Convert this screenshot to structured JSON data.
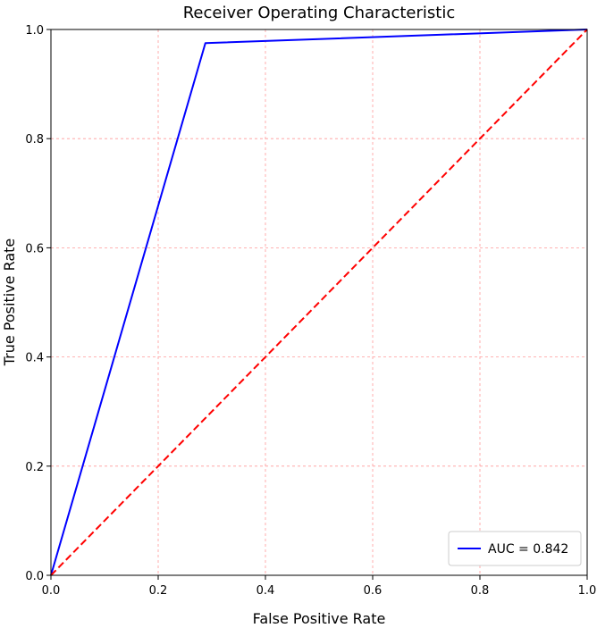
{
  "chart_data": {
    "type": "line",
    "title": "Receiver Operating Characteristic",
    "xlabel": "False Positive Rate",
    "ylabel": "True Positive Rate",
    "xlim": [
      0,
      1
    ],
    "ylim": [
      0,
      1
    ],
    "xticks": [
      0.0,
      0.2,
      0.4,
      0.6,
      0.8,
      1.0
    ],
    "yticks": [
      0.0,
      0.2,
      0.4,
      0.6,
      0.8,
      1.0
    ],
    "xtick_labels": [
      "0.0",
      "0.2",
      "0.4",
      "0.6",
      "0.8",
      "1.0"
    ],
    "ytick_labels": [
      "0.0",
      "0.2",
      "0.4",
      "0.6",
      "0.8",
      "1.0"
    ],
    "grid": true,
    "grid_color": "#ff9999",
    "series": [
      {
        "name": "AUC = 0.842",
        "color": "#0000ff",
        "style": "solid",
        "x": [
          0.0,
          0.288,
          1.0
        ],
        "y": [
          0.0,
          0.975,
          1.0
        ]
      },
      {
        "name": "",
        "color": "#ff0000",
        "style": "dashed",
        "x": [
          0.0,
          1.0
        ],
        "y": [
          0.0,
          1.0
        ]
      }
    ],
    "legend": {
      "position": "lower-right",
      "entries": [
        "AUC = 0.842"
      ]
    }
  }
}
